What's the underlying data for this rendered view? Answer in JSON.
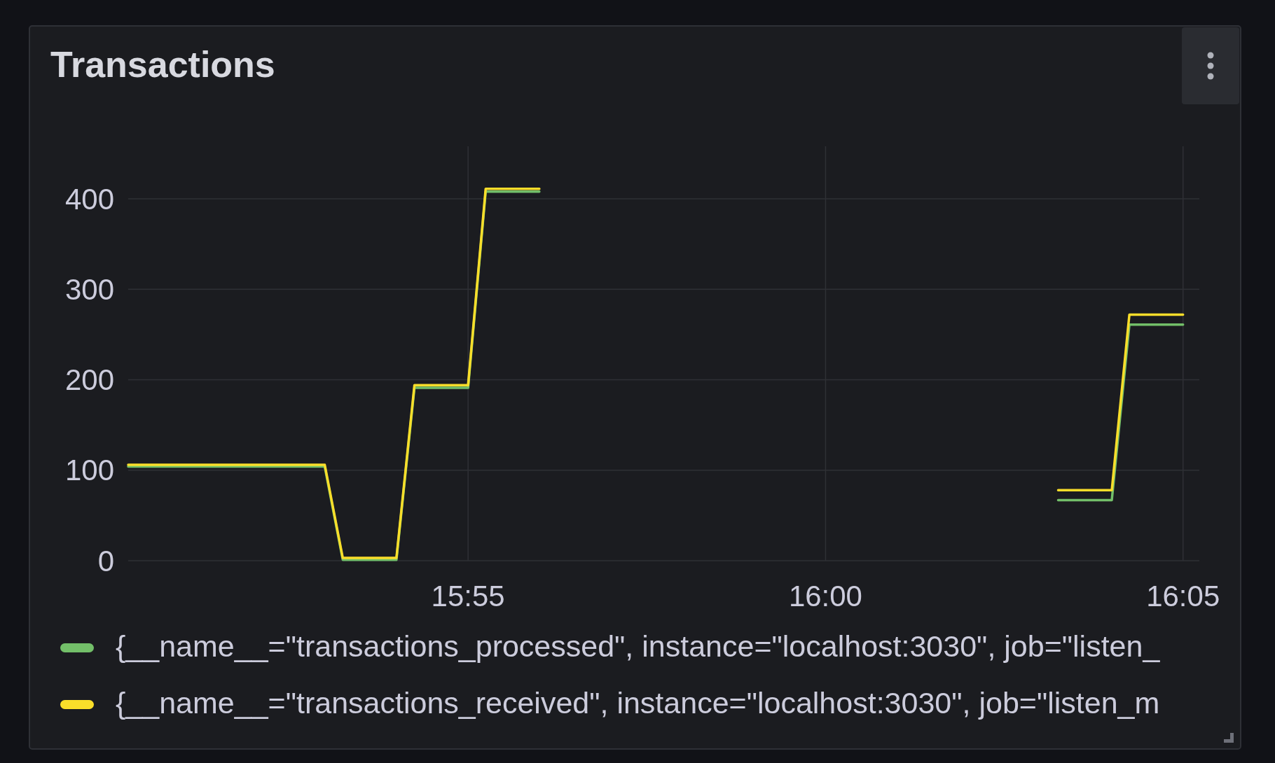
{
  "chart_data": {
    "type": "line",
    "title": "Transactions",
    "x": [
      15.8375,
      15.8833,
      15.8875,
      15.9,
      15.9042,
      15.9167,
      15.9208,
      15.9333,
      15.99,
      16.0542,
      16.0667,
      16.0708,
      16.0833
    ],
    "series": [
      {
        "name": "{__name__=\"transactions_processed\", instance=\"localhost:3030\", job=\"listen_",
        "color": "#73bf69",
        "values": [
          104,
          104,
          1,
          1,
          191,
          191,
          408,
          408,
          null,
          67,
          67,
          261,
          261
        ]
      },
      {
        "name": "{__name__=\"transactions_received\", instance=\"localhost:3030\", job=\"listen_m",
        "color": "#fade2a",
        "values": [
          106,
          106,
          3,
          3,
          194,
          194,
          411,
          411,
          null,
          78,
          78,
          272,
          272
        ]
      }
    ],
    "xlim": [
      15.8375,
      16.0871
    ],
    "xticks": [
      {
        "value": 15.9167,
        "label": "15:55"
      },
      {
        "value": 16,
        "label": "16:00"
      },
      {
        "value": 16.0833,
        "label": "16:05"
      }
    ],
    "ylim": [
      0,
      458
    ],
    "yticks": [
      0,
      100,
      200,
      300,
      400
    ],
    "grid": true,
    "legend": "bottom",
    "marker": "none",
    "line_style": "solid"
  }
}
